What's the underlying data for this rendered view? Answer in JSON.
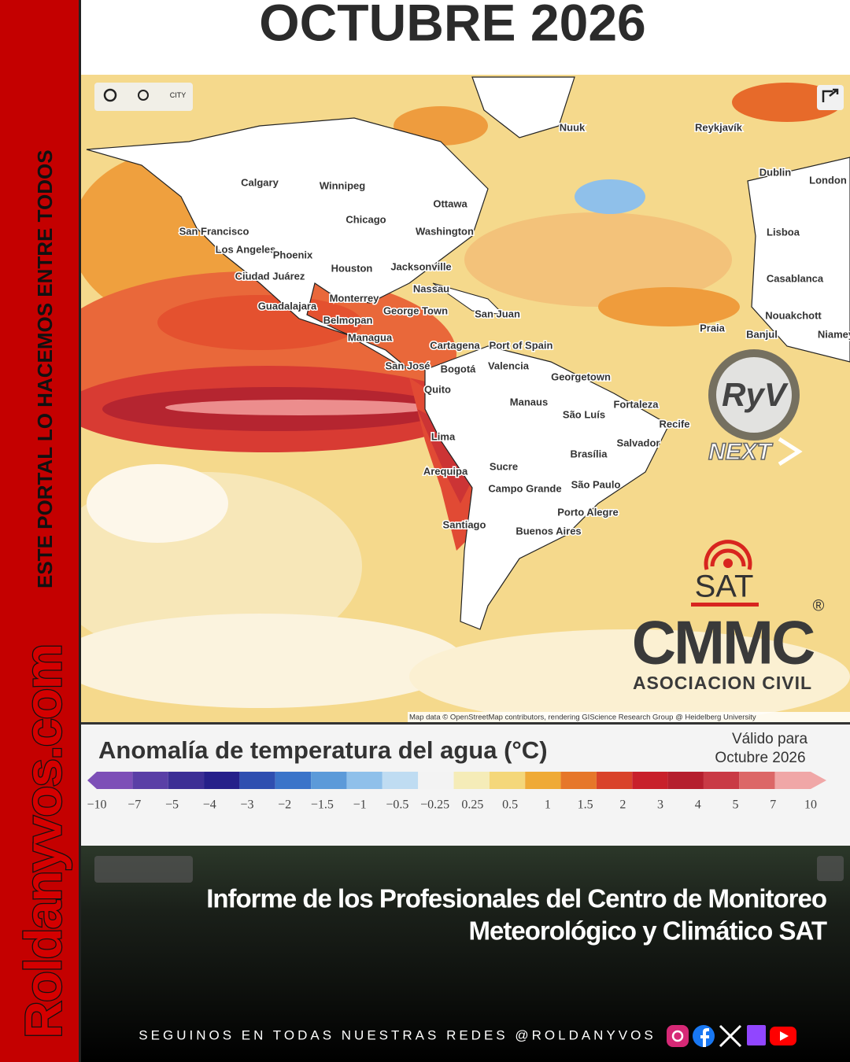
{
  "sidebar": {
    "brand": "Roldanyvos.com",
    "slogan": "ESTE PORTAL LO HACEMOS ENTRE TODOS"
  },
  "header": {
    "title": "OCTUBRE 2026"
  },
  "map": {
    "toolbar": "CITY",
    "cities": [
      "Calgary",
      "Winnipeg",
      "Ottawa",
      "Chicago",
      "Washington",
      "San Francisco",
      "Los Angeles",
      "Phoenix",
      "Houston",
      "Jacksonville",
      "Nassau",
      "Ciudad Juárez",
      "Monterrey",
      "Guadalajara",
      "Belmopan",
      "George Town",
      "San Juan",
      "Managua",
      "Cartagena",
      "Port of Spain",
      "San José",
      "Bogotá",
      "Valencia",
      "Georgetown",
      "Quito",
      "Manaus",
      "São Luís",
      "Fortaleza",
      "Recife",
      "Lima",
      "Brasília",
      "Salvador",
      "Arequipa",
      "Sucre",
      "Campo Grande",
      "São Paulo",
      "Porto Alegre",
      "Santiago",
      "Buenos Aires",
      "Nuuk",
      "Reykjavík",
      "Dublin",
      "London",
      "Lisboa",
      "Casablanca",
      "Nouakchott",
      "Praia",
      "Banjul",
      "Niamey"
    ],
    "attribution": "Map data © OpenStreetMap contributors, rendering GIScience Research Group @ Heidelberg University",
    "logos": {
      "ryv": "RyV",
      "next": "NEXT",
      "sat": "SAT",
      "cmmc": "CMMC",
      "registered": "®",
      "civil": "ASOCIACION CIVIL"
    }
  },
  "legend": {
    "title": "Anomalía de temperatura del agua (°C)",
    "valid": [
      "Válido para",
      "Octubre 2026"
    ],
    "ticks": [
      "−10",
      "−7",
      "−5",
      "−4",
      "−3",
      "−2",
      "−1.5",
      "−1",
      "−0.5",
      "−0.25",
      "0.25",
      "0.5",
      "1",
      "1.5",
      "2",
      "3",
      "4",
      "5",
      "7",
      "10"
    ]
  },
  "caption": [
    "Informe de los Profesionales del Centro de Monitoreo",
    "Meteorológico y Climático SAT"
  ],
  "footer": {
    "text": "SEGUINOS EN TODAS NUESTRAS REDES @ROLDANYVOS"
  }
}
